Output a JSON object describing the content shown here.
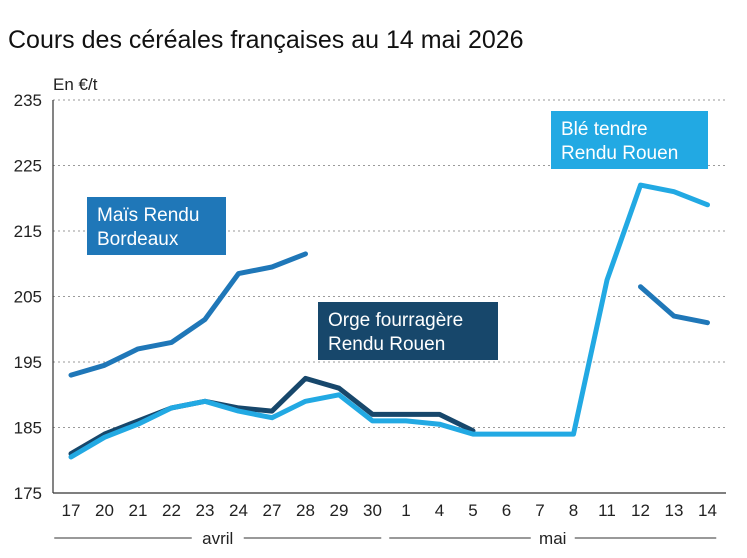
{
  "chart_data": {
    "type": "line",
    "title": "Cours des céréales françaises au 14 mai 2026",
    "ylabel": "En €/t",
    "ylim": [
      175,
      235
    ],
    "yticks": [
      175,
      185,
      195,
      205,
      215,
      225,
      235
    ],
    "grid": "horizontal-dotted",
    "categories": [
      "17",
      "20",
      "21",
      "22",
      "23",
      "24",
      "27",
      "28",
      "29",
      "30",
      "1",
      "4",
      "5",
      "6",
      "7",
      "8",
      "11",
      "12",
      "13",
      "14"
    ],
    "months": [
      {
        "label": "avril",
        "from": 0,
        "to": 9
      },
      {
        "label": "mai",
        "from": 10,
        "to": 19
      }
    ],
    "series": [
      {
        "name": "Maïs Rendu Bordeaux",
        "label_lines": [
          "Maïs Rendu",
          "Bordeaux"
        ],
        "color": "#1f77b8",
        "values": [
          193,
          194.5,
          197,
          198,
          201.5,
          208.5,
          209.5,
          211.5,
          null,
          null,
          null,
          null,
          null,
          null,
          null,
          null,
          null,
          206.5,
          202,
          201
        ]
      },
      {
        "name": "Orge fourragère Rendu Rouen",
        "label_lines": [
          "Orge fourragère",
          "Rendu Rouen"
        ],
        "color": "#17476b",
        "values": [
          181,
          184,
          186,
          188,
          189,
          188,
          187.5,
          192.5,
          191,
          187,
          187,
          187,
          184.5,
          null,
          null,
          null,
          null,
          null,
          null,
          null
        ]
      },
      {
        "name": "Blé tendre Rendu Rouen",
        "label_lines": [
          "Blé tendre",
          "Rendu Rouen"
        ],
        "color": "#22a9e3",
        "values": [
          180.5,
          183.5,
          185.5,
          188,
          189,
          187.5,
          186.5,
          189,
          190,
          186,
          186,
          185.5,
          184,
          184,
          184,
          184,
          207.5,
          222,
          221,
          219
        ]
      }
    ]
  }
}
